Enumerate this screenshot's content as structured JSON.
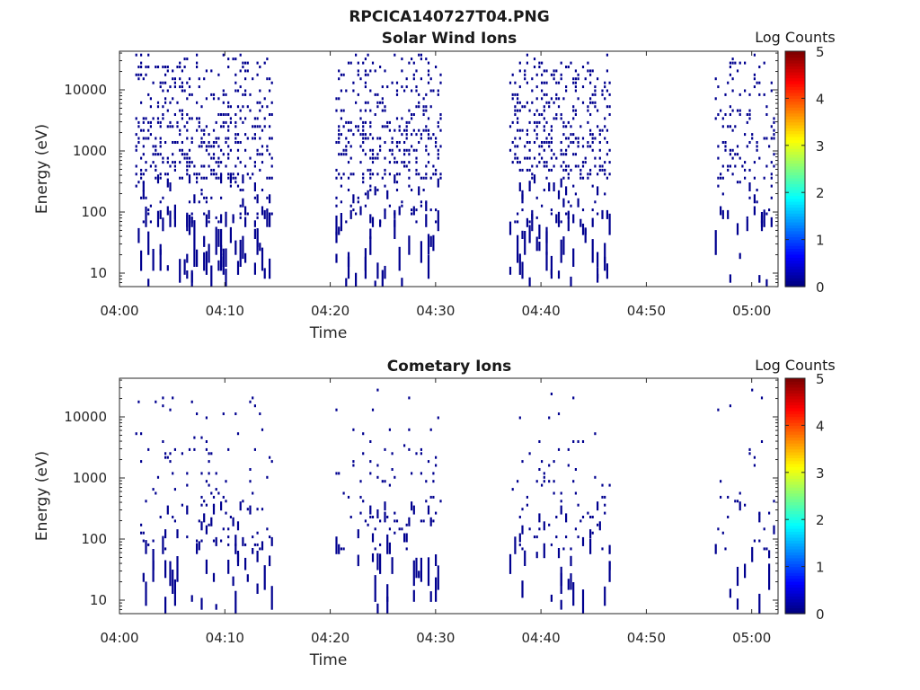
{
  "figure_title": "RPCICA140727T04.PNG",
  "chart_data": [
    {
      "type": "heatmap",
      "title": "Solar Wind Ions",
      "xlabel": "Time",
      "ylabel": "Energy (eV)",
      "x_ticks": [
        "04:00",
        "04:10",
        "04:20",
        "04:30",
        "04:40",
        "04:50",
        "05:00"
      ],
      "xlim_minutes": [
        0,
        62.5
      ],
      "y_ticks": [
        "10",
        "100",
        "1000",
        "10000"
      ],
      "ylim": [
        5.5,
        40000
      ],
      "y_scale": "log",
      "colorbar": {
        "label": "Log Counts",
        "ticks": [
          "0",
          "1",
          "2",
          "3",
          "4",
          "5"
        ],
        "range": [
          0,
          5
        ],
        "colormap": "jet"
      },
      "cell_value": 0,
      "bursts": [
        {
          "start_min": 1.5,
          "end_min": 14.5,
          "low_max_min": 14.5
        },
        {
          "start_min": 20.5,
          "end_min": 30.5,
          "low_max_min": 30.0
        },
        {
          "start_min": 37.0,
          "end_min": 46.5,
          "low_max_min": 46.0
        },
        {
          "start_min": 56.5,
          "end_min": 62.2,
          "low_max_min": 62.0
        }
      ],
      "grid": false
    },
    {
      "type": "heatmap",
      "title": "Cometary Ions",
      "xlabel": "Time",
      "ylabel": "Energy (eV)",
      "x_ticks": [
        "04:00",
        "04:10",
        "04:20",
        "04:30",
        "04:40",
        "04:50",
        "05:00"
      ],
      "xlim_minutes": [
        0,
        62.5
      ],
      "y_ticks": [
        "10",
        "100",
        "1000",
        "10000"
      ],
      "ylim": [
        5.5,
        40000
      ],
      "y_scale": "log",
      "colorbar": {
        "label": "Log Counts",
        "ticks": [
          "0",
          "1",
          "2",
          "3",
          "4",
          "5"
        ],
        "range": [
          0,
          5
        ],
        "colormap": "jet"
      },
      "cell_value": 0,
      "bursts": [
        {
          "start_min": 1.5,
          "end_min": 14.5,
          "low_max_min": 14.5
        },
        {
          "start_min": 20.5,
          "end_min": 30.5,
          "low_max_min": 30.0
        },
        {
          "start_min": 37.0,
          "end_min": 46.5,
          "low_max_min": 46.0
        },
        {
          "start_min": 56.5,
          "end_min": 62.2,
          "low_max_min": 62.0
        }
      ],
      "grid": false
    }
  ],
  "colors": {
    "cell": "#00008f",
    "axis": "#262626",
    "background": "#ffffff"
  }
}
